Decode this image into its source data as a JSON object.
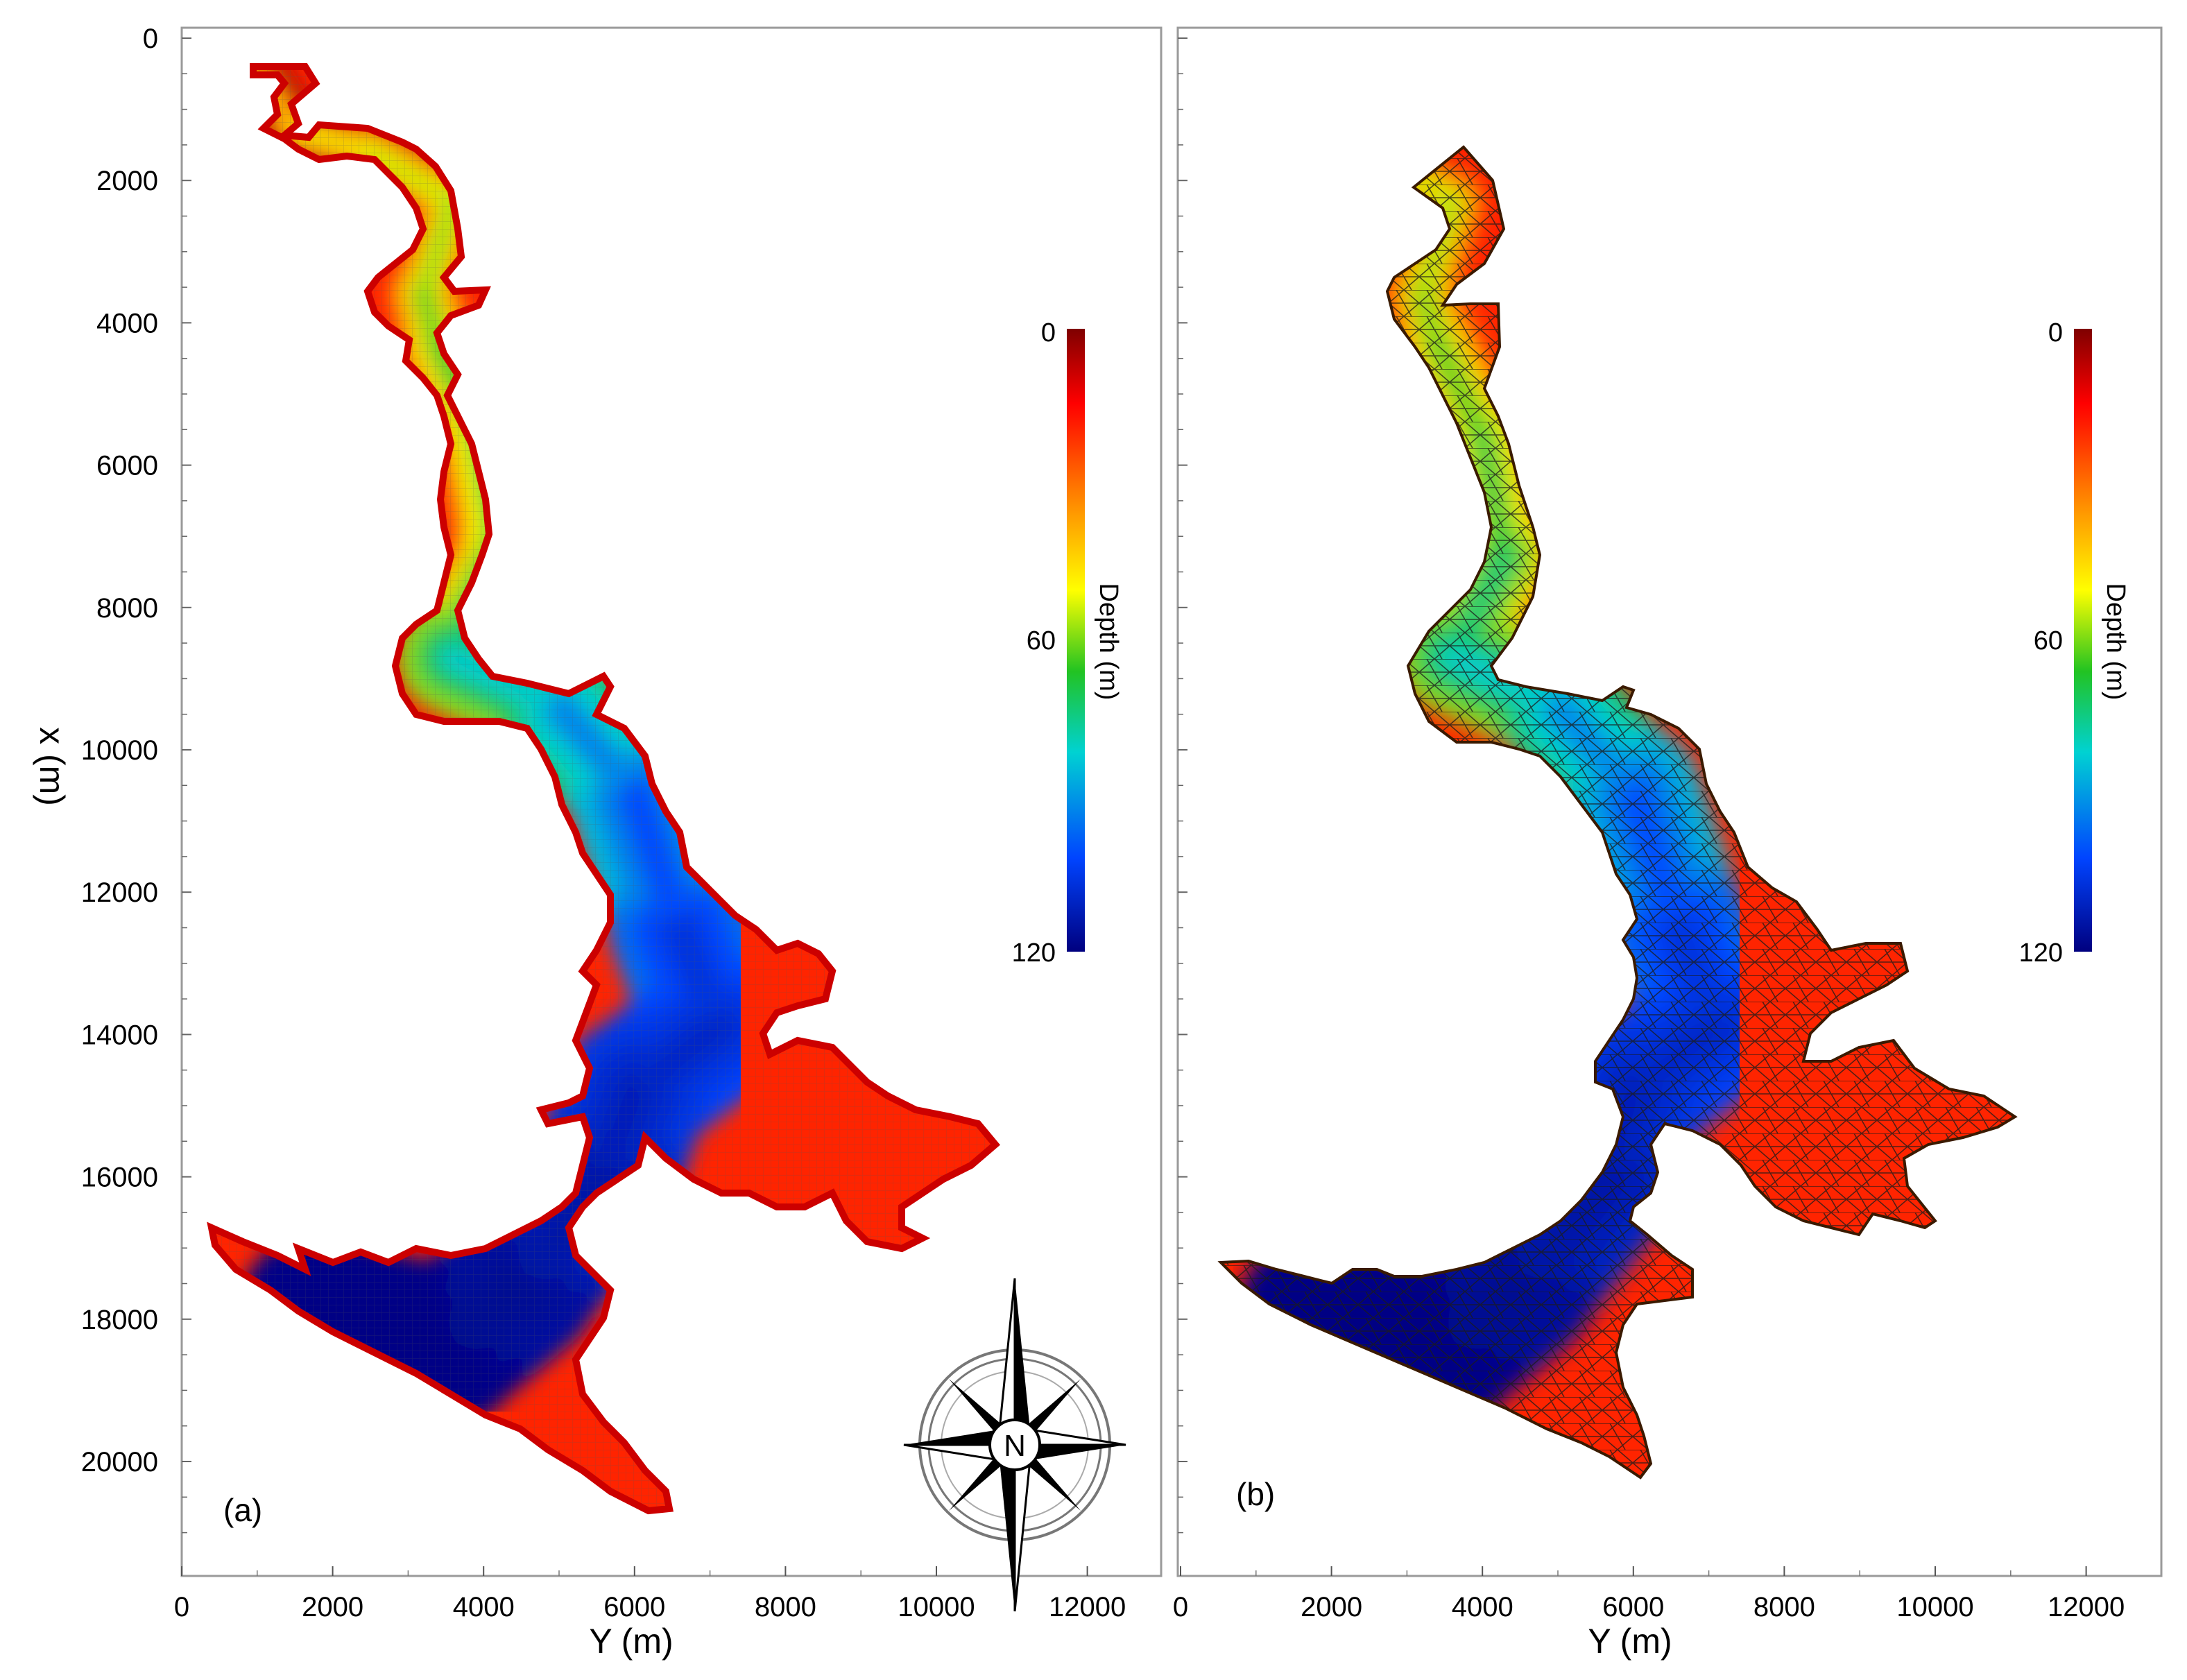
{
  "chart_data": [
    {
      "type": "heatmap",
      "panel_label": "(a)",
      "xlabel": "Y (m)",
      "ylabel": "x (m)",
      "xlim": [
        0,
        13000
      ],
      "ylim": [
        0,
        21600
      ],
      "y_inverted": true,
      "x_ticks": [
        0,
        2000,
        4000,
        6000,
        8000,
        10000,
        12000
      ],
      "y_ticks": [
        0,
        2000,
        4000,
        6000,
        8000,
        10000,
        12000,
        14000,
        16000,
        18000,
        20000
      ],
      "colorbar": {
        "label": "Depth (m)",
        "ticks": [
          0,
          60,
          120
        ],
        "range": [
          0,
          120
        ],
        "colormap": "jet-reversed"
      },
      "grid": "structured",
      "depth_profile": [
        {
          "Y": 1000,
          "x": 500,
          "depth": 10
        },
        {
          "Y": 1500,
          "x": 1300,
          "depth": 20
        },
        {
          "Y": 2500,
          "x": 1600,
          "depth": 30
        },
        {
          "Y": 3600,
          "x": 2300,
          "depth": 35
        },
        {
          "Y": 3200,
          "x": 3600,
          "depth": 40
        },
        {
          "Y": 3400,
          "x": 4300,
          "depth": 45
        },
        {
          "Y": 4000,
          "x": 5600,
          "depth": 50
        },
        {
          "Y": 4300,
          "x": 7300,
          "depth": 55
        },
        {
          "Y": 3600,
          "x": 8700,
          "depth": 65
        },
        {
          "Y": 5000,
          "x": 9400,
          "depth": 80
        },
        {
          "Y": 6000,
          "x": 10600,
          "depth": 90
        },
        {
          "Y": 6600,
          "x": 12500,
          "depth": 100
        },
        {
          "Y": 7100,
          "x": 13900,
          "depth": 105
        },
        {
          "Y": 6000,
          "x": 14800,
          "depth": 108
        },
        {
          "Y": 5600,
          "x": 16000,
          "depth": 110
        },
        {
          "Y": 4500,
          "x": 17500,
          "depth": 115
        },
        {
          "Y": 3500,
          "x": 18400,
          "depth": 118
        },
        {
          "Y": 1800,
          "x": 17900,
          "depth": 120
        }
      ]
    },
    {
      "type": "heatmap",
      "panel_label": "(b)",
      "xlabel": "Y (m)",
      "xlim": [
        0,
        13000
      ],
      "ylim": [
        0,
        21600
      ],
      "y_inverted": true,
      "x_ticks": [
        0,
        2000,
        4000,
        6000,
        8000,
        10000,
        12000
      ],
      "colorbar": {
        "label": "Depth (m)",
        "ticks": [
          0,
          60,
          120
        ],
        "range": [
          0,
          120
        ],
        "colormap": "jet-reversed"
      },
      "grid": "unstructured-triangular"
    }
  ],
  "compass": {
    "label": "N"
  },
  "colors": {
    "cmap_stops": [
      "#7f0000",
      "#ff0000",
      "#ff8c00",
      "#ffff00",
      "#22c322",
      "#00d2d2",
      "#0044ff",
      "#00007f"
    ],
    "frame": "#9a9a9a",
    "mesh": "#1a1a1a"
  }
}
